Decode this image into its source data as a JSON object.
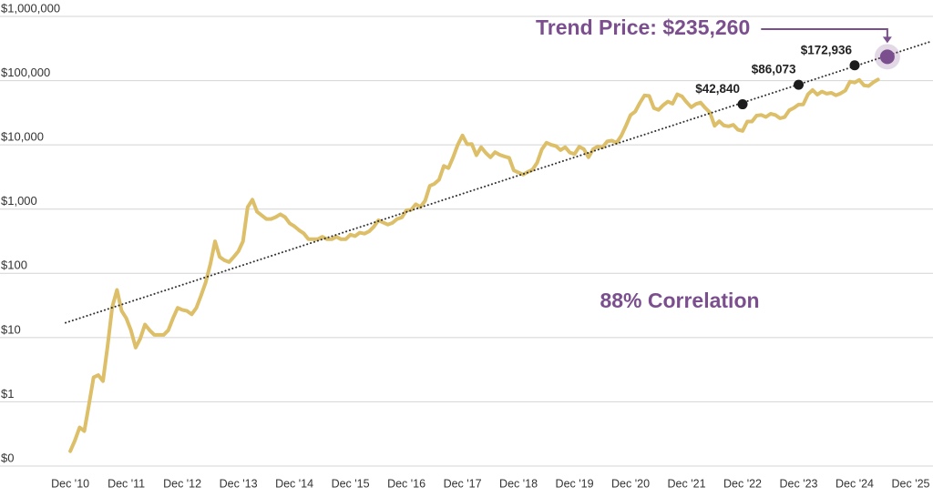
{
  "chart_data": {
    "type": "line",
    "y_scale": "log",
    "grid": true,
    "color": "#dcbf68",
    "x": [
      "2010-12",
      "2011-01",
      "2011-02",
      "2011-03",
      "2011-04",
      "2011-05",
      "2011-06",
      "2011-07",
      "2011-08",
      "2011-09",
      "2011-10",
      "2011-11",
      "2011-12",
      "2012-01",
      "2012-02",
      "2012-03",
      "2012-04",
      "2012-05",
      "2012-06",
      "2012-07",
      "2012-08",
      "2012-09",
      "2012-10",
      "2012-11",
      "2012-12",
      "2013-01",
      "2013-02",
      "2013-03",
      "2013-04",
      "2013-05",
      "2013-06",
      "2013-07",
      "2013-08",
      "2013-09",
      "2013-10",
      "2013-11",
      "2013-12",
      "2014-01",
      "2014-02",
      "2014-03",
      "2014-04",
      "2014-05",
      "2014-06",
      "2014-07",
      "2014-08",
      "2014-09",
      "2014-10",
      "2014-11",
      "2014-12",
      "2015-01",
      "2015-02",
      "2015-03",
      "2015-04",
      "2015-05",
      "2015-06",
      "2015-07",
      "2015-08",
      "2015-09",
      "2015-10",
      "2015-11",
      "2015-12",
      "2016-01",
      "2016-02",
      "2016-03",
      "2016-04",
      "2016-05",
      "2016-06",
      "2016-07",
      "2016-08",
      "2016-09",
      "2016-10",
      "2016-11",
      "2016-12",
      "2017-01",
      "2017-02",
      "2017-03",
      "2017-04",
      "2017-05",
      "2017-06",
      "2017-07",
      "2017-08",
      "2017-09",
      "2017-10",
      "2017-11",
      "2017-12",
      "2018-01",
      "2018-02",
      "2018-03",
      "2018-04",
      "2018-05",
      "2018-06",
      "2018-07",
      "2018-08",
      "2018-09",
      "2018-10",
      "2018-11",
      "2018-12",
      "2019-01",
      "2019-02",
      "2019-03",
      "2019-04",
      "2019-05",
      "2019-06",
      "2019-07",
      "2019-08",
      "2019-09",
      "2019-10",
      "2019-11",
      "2019-12",
      "2020-01",
      "2020-02",
      "2020-03",
      "2020-04",
      "2020-05",
      "2020-06",
      "2020-07",
      "2020-08",
      "2020-09",
      "2020-10",
      "2020-11",
      "2020-12",
      "2021-01",
      "2021-02",
      "2021-03",
      "2021-04",
      "2021-05",
      "2021-06",
      "2021-07",
      "2021-08",
      "2021-09",
      "2021-10",
      "2021-11",
      "2021-12",
      "2022-01",
      "2022-02",
      "2022-03",
      "2022-04",
      "2022-05",
      "2022-06",
      "2022-07",
      "2022-08",
      "2022-09",
      "2022-10",
      "2022-11",
      "2022-12",
      "2023-01",
      "2023-02",
      "2023-03",
      "2023-04",
      "2023-05",
      "2023-06",
      "2023-07",
      "2023-08",
      "2023-09",
      "2023-10",
      "2023-11",
      "2023-12",
      "2024-01",
      "2024-02",
      "2024-03",
      "2024-04",
      "2024-05",
      "2024-06",
      "2024-07",
      "2024-08",
      "2024-09",
      "2024-10",
      "2024-11",
      "2024-12",
      "2025-01",
      "2025-02",
      "2025-03",
      "2025-04",
      "2025-05"
    ],
    "values": [
      0.17,
      0.25,
      0.4,
      0.35,
      0.9,
      2.4,
      2.6,
      2.1,
      7.4,
      30,
      55,
      26,
      20,
      13,
      7,
      9.7,
      16,
      13,
      11,
      11,
      11,
      13,
      20,
      29,
      27,
      26,
      23,
      29,
      45,
      72,
      140,
      315,
      180,
      160,
      150,
      180,
      220,
      315,
      1070,
      1400,
      910,
      800,
      700,
      700,
      750,
      830,
      750,
      600,
      540,
      470,
      420,
      340,
      340,
      340,
      370,
      340,
      340,
      370,
      340,
      340,
      400,
      380,
      430,
      415,
      450,
      530,
      670,
      620,
      575,
      610,
      700,
      740,
      960,
      970,
      1190,
      1080,
      1350,
      2300,
      2480,
      2870,
      4700,
      4340,
      6400,
      10000,
      14000,
      10200,
      10300,
      6900,
      9200,
      7500,
      6400,
      7700,
      7000,
      6600,
      6300,
      4000,
      3700,
      3450,
      3800,
      4100,
      5300,
      8500,
      10800,
      10000,
      9600,
      8300,
      9200,
      7600,
      7200,
      9350,
      8600,
      6400,
      8600,
      9450,
      9100,
      11300,
      11650,
      10800,
      13800,
      19700,
      29000,
      33100,
      45100,
      58800,
      57700,
      37300,
      35000,
      41500,
      47100,
      43800,
      61300,
      57000,
      46300,
      38500,
      43200,
      45500,
      37700,
      31800,
      19800,
      23300,
      20000,
      19400,
      20500,
      17200,
      16500,
      23100,
      23100,
      28500,
      29200,
      27200,
      30500,
      29200,
      26000,
      27000,
      34500,
      37700,
      42300,
      42600,
      61200,
      71300,
      60600,
      67500,
      62700,
      64600,
      59000,
      63300,
      70200,
      96400,
      93400,
      102400,
      84400,
      82500,
      94200,
      104000
    ],
    "trend": {
      "x": [
        "2010-11",
        "2026-04"
      ],
      "values": [
        17,
        400000
      ],
      "color": "#333333"
    },
    "markers": {
      "x": [
        "2022-12",
        "2023-12",
        "2024-12"
      ],
      "values": [
        42840,
        86073,
        172936
      ],
      "value_labels": [
        "$42,840",
        "$86,073",
        "$172,936"
      ],
      "color": "#1c1c1c"
    },
    "annotations": [
      {
        "text": "Trend Price: $235,260",
        "x": "2025-07",
        "value": 235260,
        "color": "#7b4f8e"
      },
      {
        "text": "88% Correlation",
        "color": "#7b4f8e"
      }
    ],
    "xlim": [
      "2010-11",
      "2026-04"
    ],
    "ylim": [
      0.1,
      1000000
    ],
    "yticks": [
      {
        "value": 0.1,
        "label": "$0"
      },
      {
        "value": 1,
        "label": "$1"
      },
      {
        "value": 10,
        "label": "$10"
      },
      {
        "value": 100,
        "label": "$100"
      },
      {
        "value": 1000,
        "label": "$1,000"
      },
      {
        "value": 10000,
        "label": "$10,000"
      },
      {
        "value": 100000,
        "label": "$100,000"
      },
      {
        "value": 1000000,
        "label": "$1,000,000"
      }
    ],
    "xticks": [
      {
        "value": "2010-12",
        "label": "Dec '10"
      },
      {
        "value": "2011-12",
        "label": "Dec '11"
      },
      {
        "value": "2012-12",
        "label": "Dec '12"
      },
      {
        "value": "2013-12",
        "label": "Dec '13"
      },
      {
        "value": "2014-12",
        "label": "Dec '14"
      },
      {
        "value": "2015-12",
        "label": "Dec '15"
      },
      {
        "value": "2016-12",
        "label": "Dec '16"
      },
      {
        "value": "2017-12",
        "label": "Dec '17"
      },
      {
        "value": "2018-12",
        "label": "Dec '18"
      },
      {
        "value": "2019-12",
        "label": "Dec '19"
      },
      {
        "value": "2020-12",
        "label": "Dec '20"
      },
      {
        "value": "2021-12",
        "label": "Dec '21"
      },
      {
        "value": "2022-12",
        "label": "Dec '22"
      },
      {
        "value": "2023-12",
        "label": "Dec '23"
      },
      {
        "value": "2024-12",
        "label": "Dec '24"
      },
      {
        "value": "2025-12",
        "label": "Dec '25"
      }
    ]
  }
}
